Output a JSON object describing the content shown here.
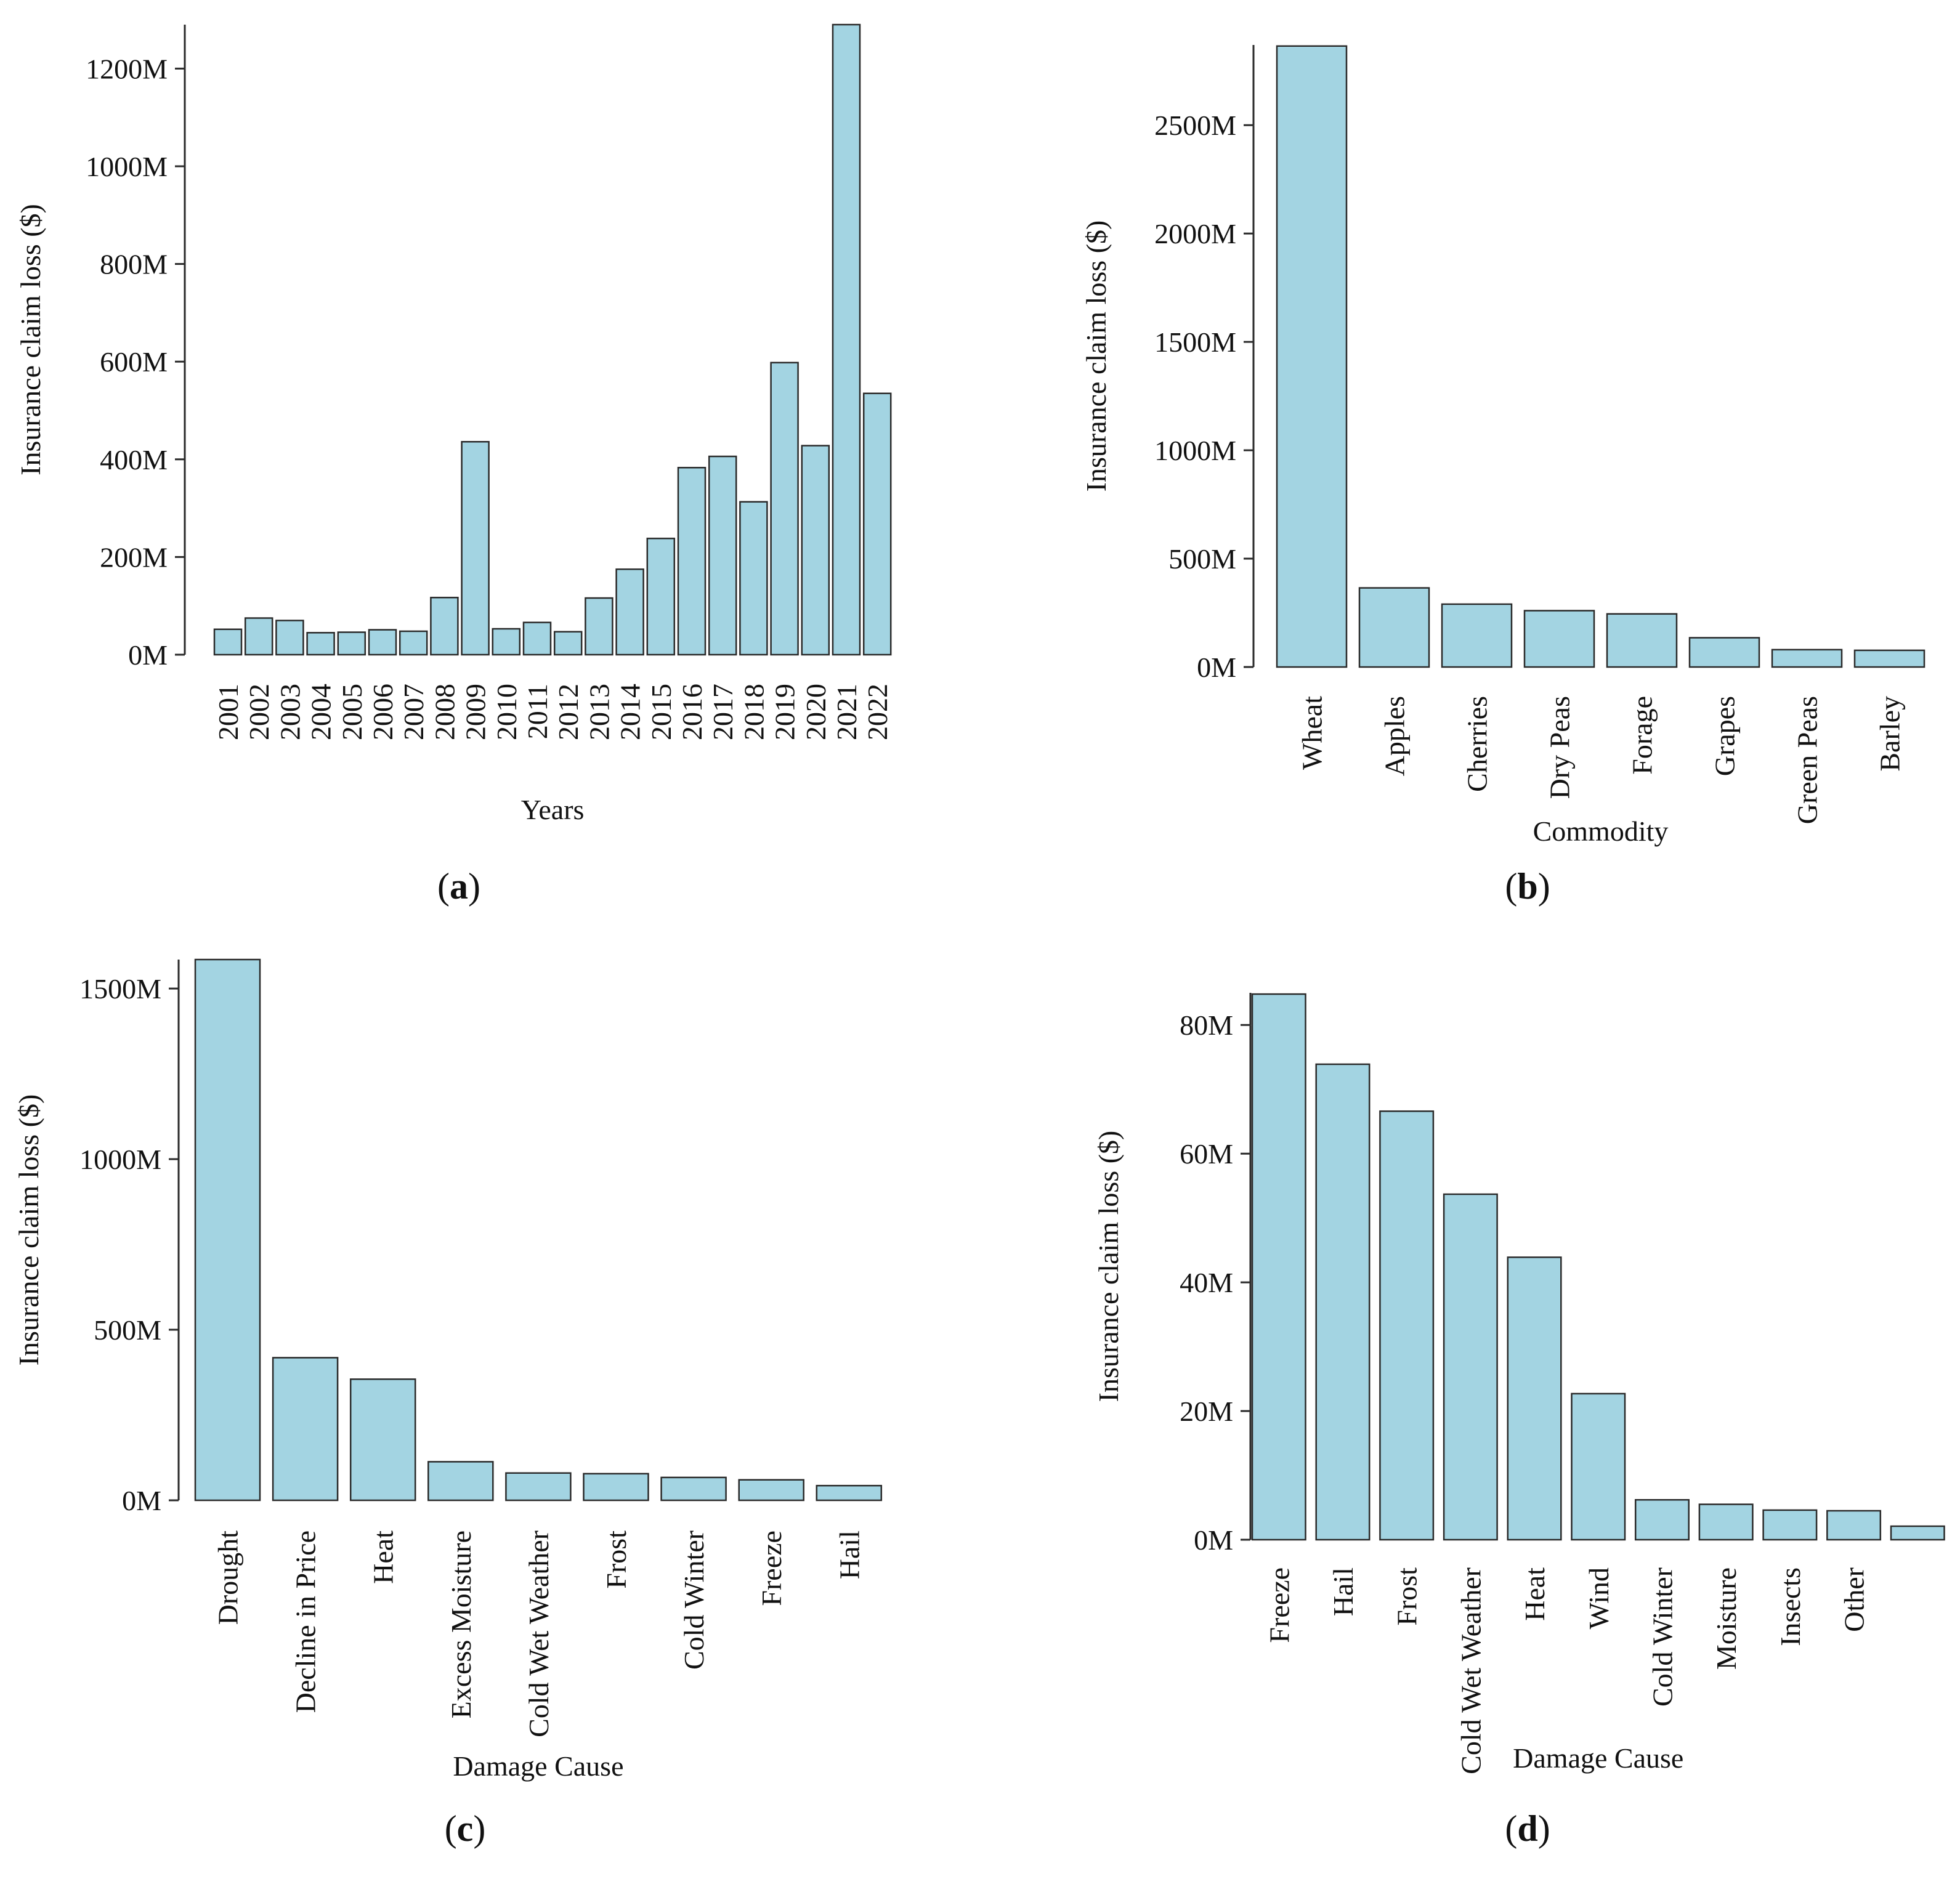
{
  "chart_data": [
    {
      "id": "a",
      "type": "bar",
      "caption": "a",
      "xlabel": "Years",
      "ylabel": "Insurance claim loss ($)",
      "ylim": [
        0,
        1290
      ],
      "yticks": [
        0,
        200,
        400,
        600,
        800,
        1000,
        1200
      ],
      "ytick_labels": [
        "0M",
        "200M",
        "400M",
        "600M",
        "800M",
        "1000M",
        "1200M"
      ],
      "categories": [
        "2001",
        "2002",
        "2003",
        "2004",
        "2005",
        "2006",
        "2007",
        "2008",
        "2009",
        "2010",
        "2011",
        "2012",
        "2013",
        "2014",
        "2015",
        "2016",
        "2017",
        "2018",
        "2019",
        "2020",
        "2021",
        "2022"
      ],
      "values": [
        52,
        75,
        70,
        45,
        46,
        51,
        48,
        117,
        436,
        53,
        66,
        47,
        116,
        175,
        238,
        383,
        406,
        313,
        598,
        428,
        1290,
        535
      ],
      "unit": "millions of dollars",
      "grid": false
    },
    {
      "id": "b",
      "type": "bar",
      "caption": "b",
      "xlabel": "Commodity",
      "ylabel": "Insurance claim loss ($)",
      "ylim": [
        0,
        2870
      ],
      "yticks": [
        0,
        500,
        1000,
        1500,
        2000,
        2500
      ],
      "ytick_labels": [
        "0M",
        "500M",
        "1000M",
        "1500M",
        "2000M",
        "2500M"
      ],
      "categories": [
        "Wheat",
        "Apples",
        "Cherries",
        "Dry Peas",
        "Forage",
        "Grapes",
        "Green Peas",
        "Barley"
      ],
      "values": [
        2865,
        365,
        290,
        260,
        245,
        135,
        80,
        77
      ],
      "unit": "millions of dollars",
      "grid": false
    },
    {
      "id": "c",
      "type": "bar",
      "caption": "c",
      "xlabel": "Damage Cause",
      "ylabel": "Insurance claim loss ($)",
      "ylim": [
        0,
        1585
      ],
      "yticks": [
        0,
        500,
        1000,
        1500
      ],
      "ytick_labels": [
        "0M",
        "500M",
        "1000M",
        "1500M"
      ],
      "categories": [
        "Drought",
        "Decline in Price",
        "Heat",
        "Excess Moisture",
        "Cold Wet Weather",
        "Frost",
        "Cold Winter",
        "Freeze",
        "Hail"
      ],
      "values": [
        1585,
        418,
        355,
        113,
        80,
        78,
        67,
        60,
        43
      ],
      "unit": "millions of dollars",
      "grid": false
    },
    {
      "id": "d",
      "type": "bar",
      "caption": "d",
      "xlabel": "Damage Cause",
      "ylabel": "Insurance claim loss ($)",
      "ylim": [
        0,
        85
      ],
      "yticks": [
        0,
        20,
        40,
        60,
        80
      ],
      "ytick_labels": [
        "0M",
        "20M",
        "40M",
        "60M",
        "80M"
      ],
      "categories": [
        "Freeze",
        "Hail",
        "Frost",
        "Cold Wet Weather",
        "Heat",
        "Wind",
        "Cold Winter",
        "Moisture",
        "Insects",
        "Other",
        ""
      ],
      "values": [
        84.8,
        73.9,
        66.6,
        53.7,
        43.9,
        22.7,
        6.2,
        5.5,
        4.6,
        4.5,
        2.1
      ],
      "unit": "millions of dollars",
      "grid": false
    }
  ]
}
